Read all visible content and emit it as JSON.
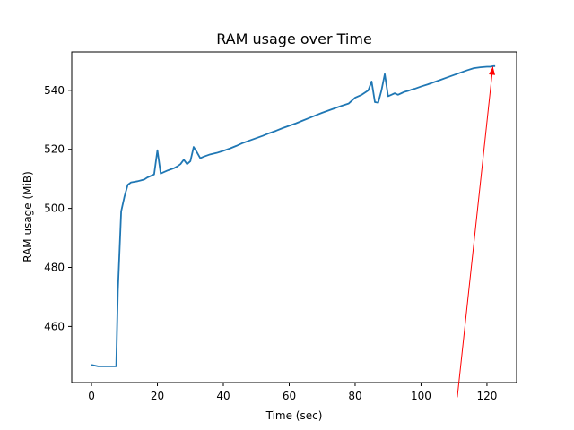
{
  "chart_data": {
    "type": "line",
    "title": "RAM usage over Time",
    "xlabel": "Time (sec)",
    "ylabel": "RAM usage (MiB)",
    "xlim": [
      -6,
      129
    ],
    "ylim": [
      441,
      553
    ],
    "xticks": [
      0,
      20,
      40,
      60,
      80,
      100,
      120
    ],
    "yticks": [
      460,
      480,
      500,
      520,
      540
    ],
    "grid": false,
    "series": [
      {
        "color": "#1f77b4",
        "x": [
          0,
          2,
          4,
          6,
          7.5,
          8,
          9,
          10,
          11,
          12,
          13,
          14,
          15,
          16,
          17,
          18,
          19,
          20,
          21,
          22,
          23,
          24,
          25,
          26,
          27,
          28,
          29,
          30,
          31,
          32,
          33,
          34,
          36,
          38,
          40,
          42,
          44,
          46,
          48,
          50,
          52,
          54,
          56,
          58,
          60,
          62,
          64,
          66,
          68,
          70,
          72,
          74,
          76,
          78,
          80,
          82,
          84,
          85,
          86,
          87,
          88,
          89,
          90,
          91,
          92,
          93,
          94,
          95,
          96,
          97,
          98,
          100,
          102,
          104,
          106,
          108,
          110,
          112,
          114,
          116,
          118,
          120,
          121,
          122,
          122.5
        ],
        "y": [
          447,
          446.5,
          446.5,
          446.5,
          446.5,
          472,
          499,
          504,
          508,
          508.8,
          509,
          509.2,
          509.5,
          509.8,
          510.5,
          511,
          511.5,
          519.7,
          511.8,
          512.3,
          512.8,
          513.2,
          513.6,
          514.2,
          515,
          516.5,
          515,
          516,
          520.8,
          519,
          517,
          517.5,
          518.3,
          518.8,
          519.5,
          520.3,
          521.2,
          522.2,
          523,
          523.8,
          524.6,
          525.5,
          526.3,
          527.2,
          528,
          528.8,
          529.7,
          530.6,
          531.5,
          532.4,
          533.2,
          534,
          534.8,
          535.5,
          537.5,
          538.5,
          540,
          543,
          536,
          535.8,
          540,
          545.5,
          538,
          538.5,
          539,
          538.5,
          539,
          539.5,
          539.8,
          540.2,
          540.5,
          541.3,
          542,
          542.8,
          543.6,
          544.4,
          545.2,
          546,
          546.8,
          547.5,
          547.8,
          548,
          548,
          548.2,
          548.2
        ]
      }
    ],
    "annotations": [
      {
        "type": "arrow",
        "color": "#ff0000",
        "from": [
          111,
          436
        ],
        "to": [
          121.8,
          548
        ]
      }
    ]
  }
}
